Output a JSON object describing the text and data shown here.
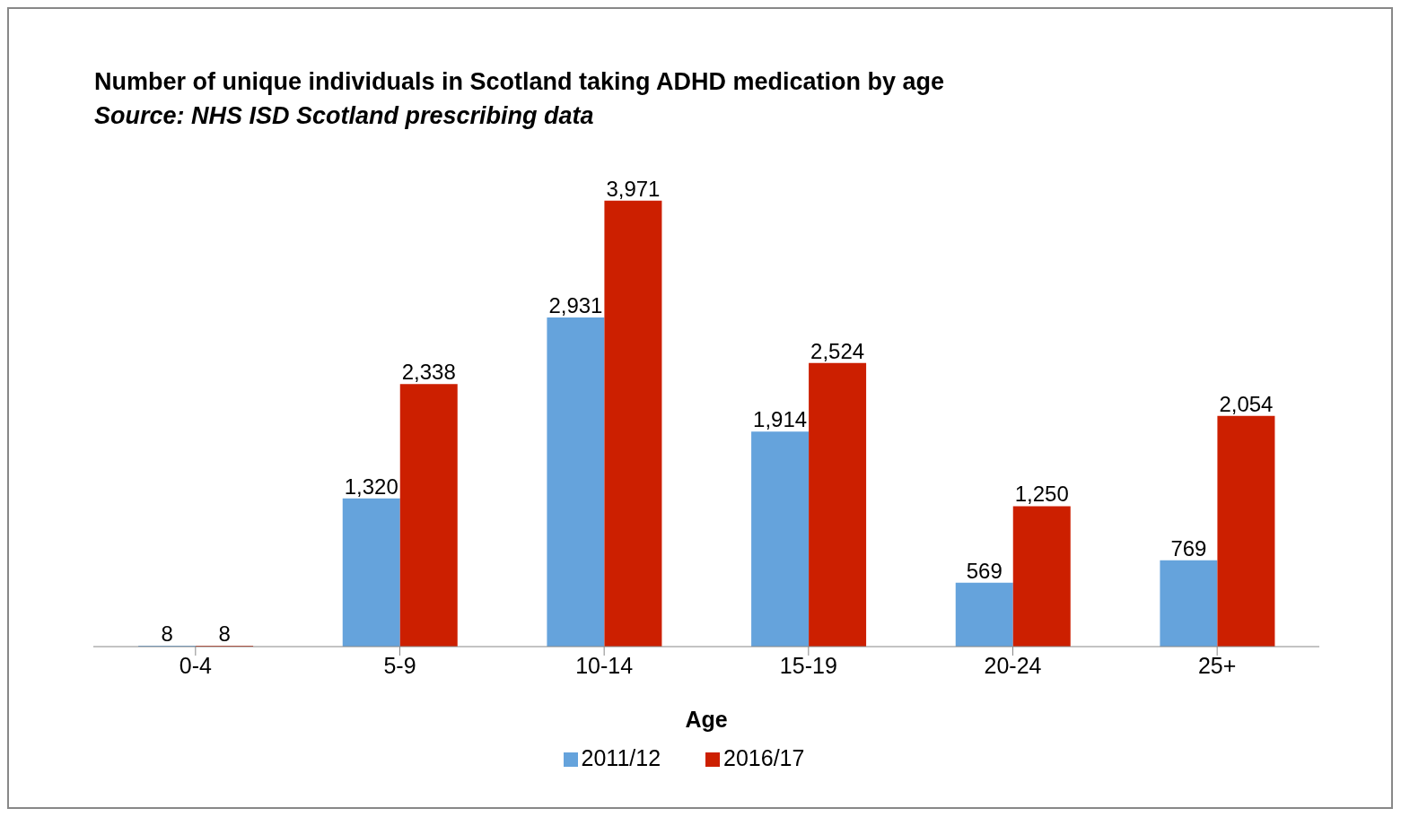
{
  "chart_data": {
    "type": "bar",
    "title": "Number of unique individuals in Scotland taking ADHD medication by age",
    "subtitle": "Source: NHS ISD Scotland prescribing data",
    "xlabel": "Age",
    "categories": [
      "0-4",
      "5-9",
      "10-14",
      "15-19",
      "20-24",
      "25+"
    ],
    "series": [
      {
        "name": "2011/12",
        "color": "#65a3dc",
        "values": [
          8,
          1320,
          2931,
          1914,
          569,
          769
        ],
        "value_labels": [
          "8",
          "1,320",
          "2,931",
          "1,914",
          "569",
          "769"
        ]
      },
      {
        "name": "2016/17",
        "color": "#cc1f00",
        "values": [
          8,
          2338,
          3971,
          2524,
          1250,
          2054
        ],
        "value_labels": [
          "8",
          "2,338",
          "3,971",
          "2,524",
          "1,250",
          "2,054"
        ]
      }
    ],
    "legend": "bottom",
    "grid": false
  }
}
